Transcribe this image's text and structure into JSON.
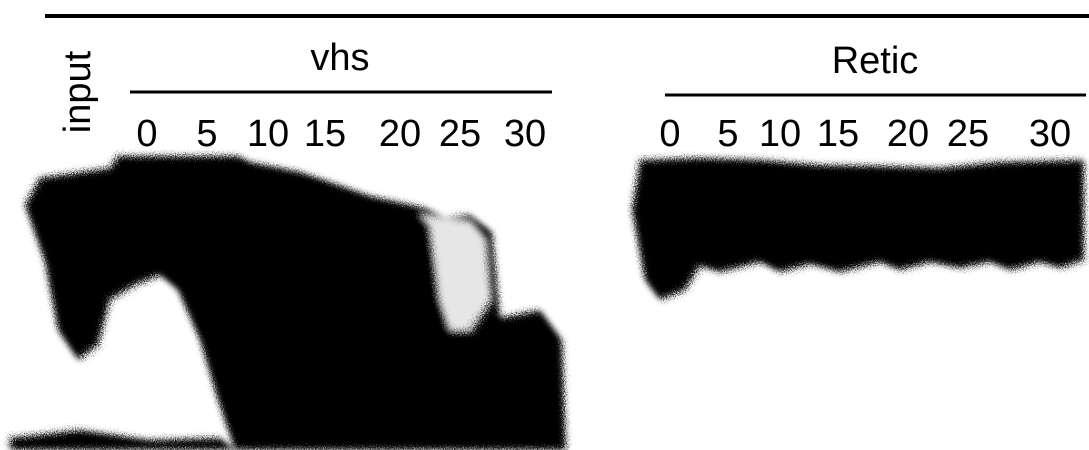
{
  "input_label": "input",
  "panels": [
    {
      "title": "vhs",
      "lanes": [
        "0",
        "5",
        "10",
        "15",
        "20",
        "25",
        "30"
      ]
    },
    {
      "title": "Retic",
      "lanes": [
        "0",
        "5",
        "10",
        "15",
        "20",
        "25",
        "30"
      ]
    }
  ]
}
